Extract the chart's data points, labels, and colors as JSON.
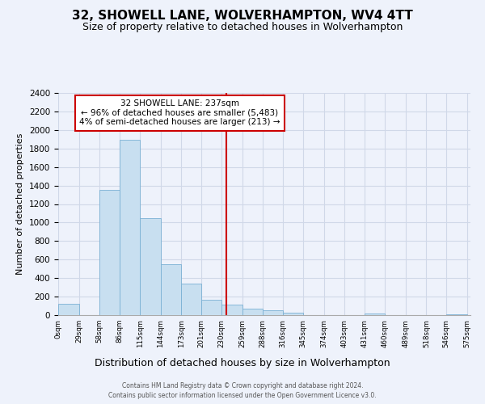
{
  "title": "32, SHOWELL LANE, WOLVERHAMPTON, WV4 4TT",
  "subtitle": "Size of property relative to detached houses in Wolverhampton",
  "xlabel": "Distribution of detached houses by size in Wolverhampton",
  "ylabel": "Number of detached properties",
  "bin_edges": [
    0,
    29,
    58,
    86,
    115,
    144,
    173,
    201,
    230,
    259,
    288,
    316,
    345,
    374,
    403,
    431,
    460,
    489,
    518,
    546,
    575
  ],
  "bin_counts": [
    120,
    0,
    1350,
    1890,
    1050,
    550,
    340,
    165,
    110,
    70,
    55,
    30,
    0,
    0,
    0,
    15,
    0,
    0,
    0,
    10
  ],
  "bar_color": "#c8dff0",
  "bar_edgecolor": "#7ab0d4",
  "property_size": 237,
  "vline_color": "#cc0000",
  "annotation_line1": "32 SHOWELL LANE: 237sqm",
  "annotation_line2": "← 96% of detached houses are smaller (5,483)",
  "annotation_line3": "4% of semi-detached houses are larger (213) →",
  "annotation_box_facecolor": "#ffffff",
  "annotation_box_edgecolor": "#cc0000",
  "ylim": [
    0,
    2400
  ],
  "yticks": [
    0,
    200,
    400,
    600,
    800,
    1000,
    1200,
    1400,
    1600,
    1800,
    2000,
    2200,
    2400
  ],
  "tick_labels": [
    "0sqm",
    "29sqm",
    "58sqm",
    "86sqm",
    "115sqm",
    "144sqm",
    "173sqm",
    "201sqm",
    "230sqm",
    "259sqm",
    "288sqm",
    "316sqm",
    "345sqm",
    "374sqm",
    "403sqm",
    "431sqm",
    "460sqm",
    "489sqm",
    "518sqm",
    "546sqm",
    "575sqm"
  ],
  "footer_line1": "Contains HM Land Registry data © Crown copyright and database right 2024.",
  "footer_line2": "Contains public sector information licensed under the Open Government Licence v3.0.",
  "bg_color": "#eef2fb",
  "grid_color": "#d0d8e8",
  "title_fontsize": 11,
  "subtitle_fontsize": 9,
  "ylabel_fontsize": 8,
  "xlabel_fontsize": 9
}
